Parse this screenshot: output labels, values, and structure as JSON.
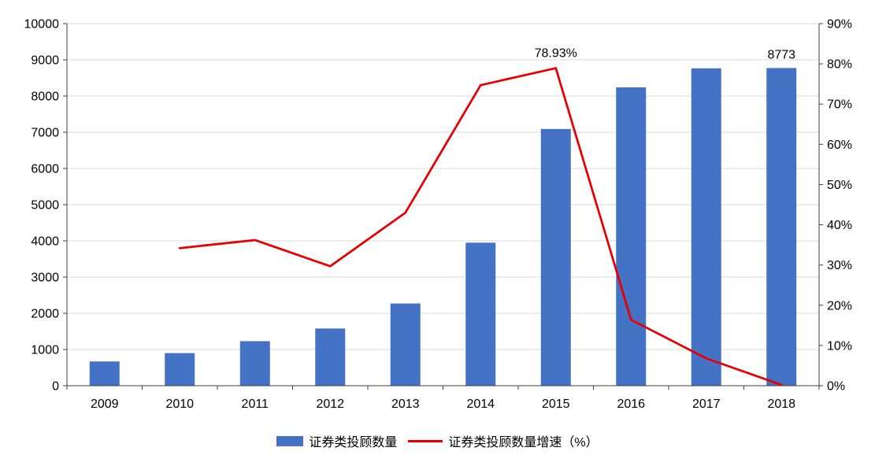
{
  "chart_data": {
    "type": "bar",
    "subtype": "bar+line-combo",
    "categories": [
      "2009",
      "2010",
      "2011",
      "2012",
      "2013",
      "2014",
      "2015",
      "2016",
      "2017",
      "2018"
    ],
    "series": [
      {
        "name": "证券类投顾数量",
        "type": "bar",
        "axis": "left",
        "color": "#4472c4",
        "values": [
          670,
          900,
          1230,
          1580,
          2270,
          3950,
          7090,
          8240,
          8765,
          8773
        ]
      },
      {
        "name": "证券类投顾数量增速（%）",
        "type": "line",
        "axis": "right",
        "color": "#e80000",
        "values": [
          null,
          34.2,
          36.2,
          29.7,
          43,
          74.7,
          78.93,
          16.4,
          6.8,
          0.2
        ]
      }
    ],
    "left_axis": {
      "min": 0,
      "max": 10000,
      "step": 1000,
      "suffix": ""
    },
    "right_axis": {
      "min": 0,
      "max": 90,
      "step": 10,
      "suffix": "%"
    },
    "annotations": [
      {
        "text": "78.93%",
        "series_index": 1,
        "category_index": 6,
        "dy": -14
      },
      {
        "text": "8773",
        "series_index": 0,
        "category_index": 9,
        "dy": -12
      }
    ],
    "grid": true,
    "legend_position": "bottom"
  },
  "colors": {
    "bar": "#4472c4",
    "line": "#e80000",
    "grid": "#d9d9d9",
    "axis": "#404040",
    "text": "#000000",
    "background": "#ffffff"
  }
}
